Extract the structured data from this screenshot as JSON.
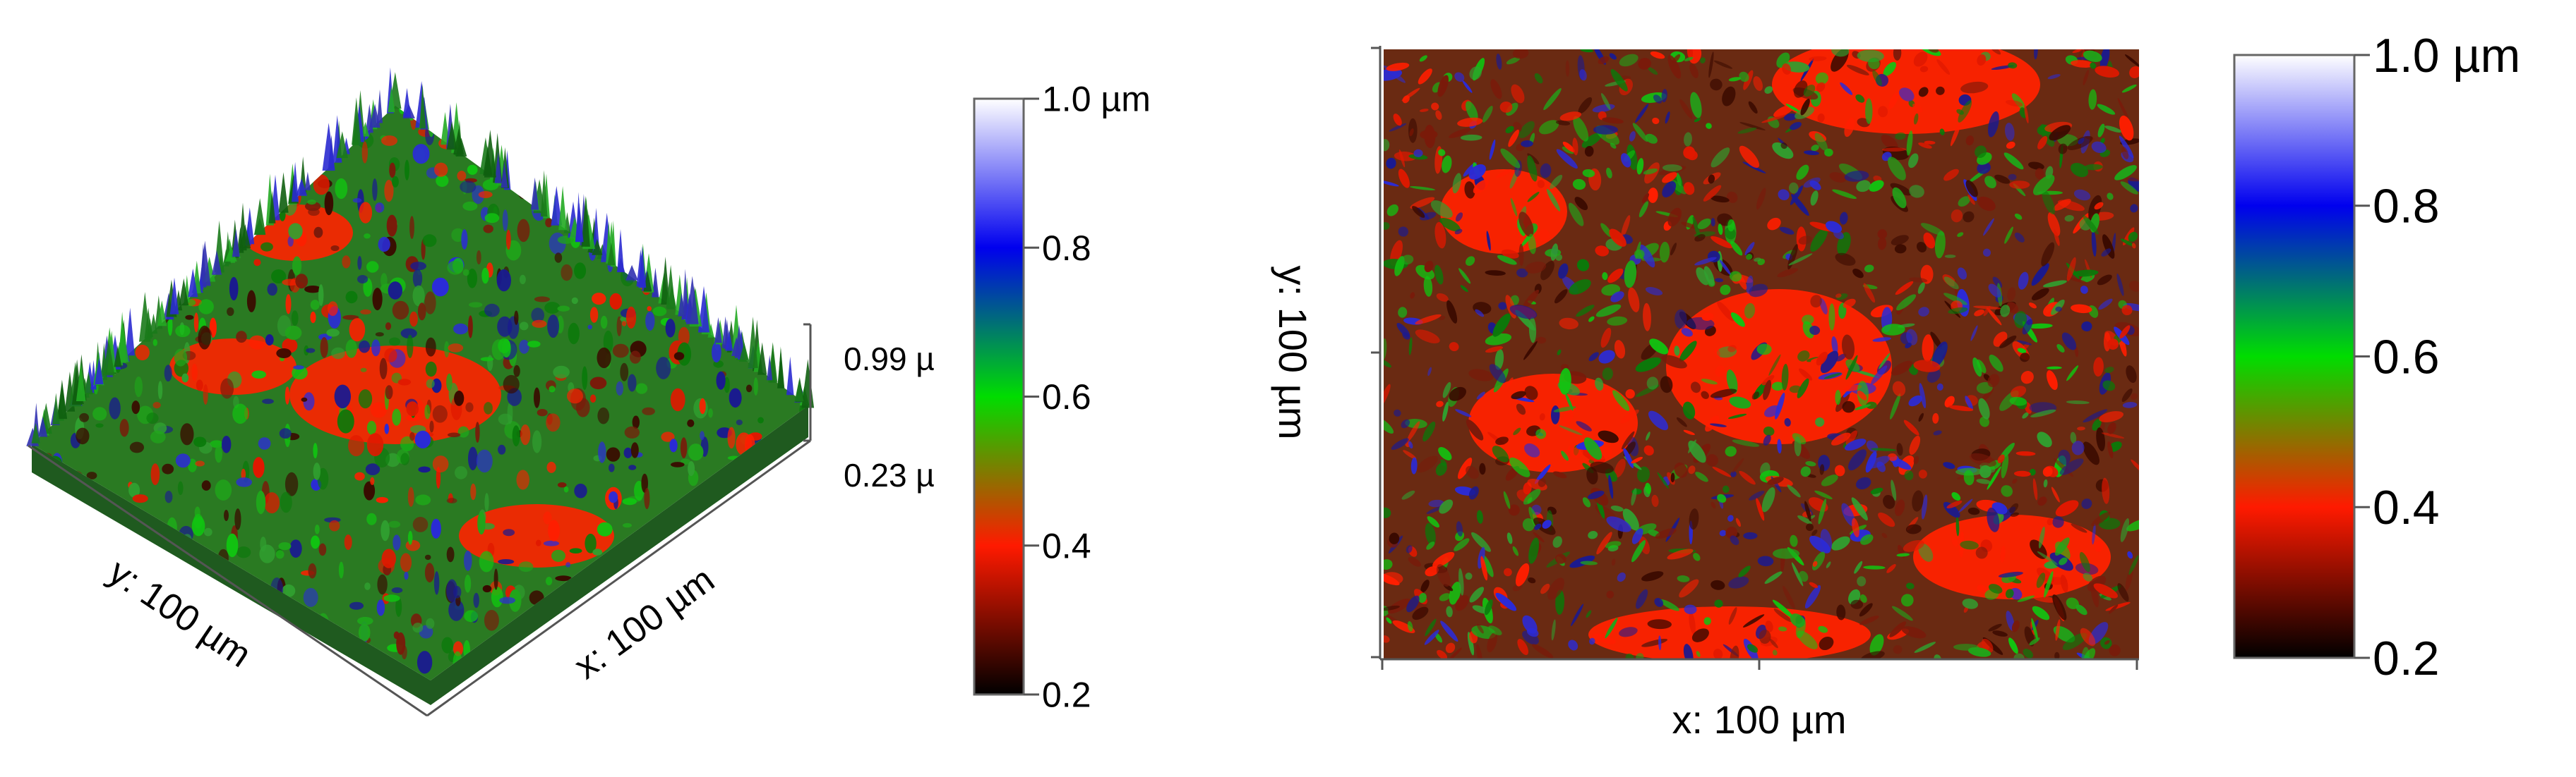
{
  "chart_data": [
    {
      "type": "heatmap",
      "view": "3d-surface",
      "x_axis_label": "x: 100 µm",
      "y_axis_label": "y: 100 µm",
      "z_range_labels": [
        "0.99 µ",
        "0.23 µ"
      ],
      "colorbar": {
        "ticks": [
          {
            "value": 1.0,
            "label": "1.0 µm"
          },
          {
            "value": 0.8,
            "label": "0.8"
          },
          {
            "value": 0.6,
            "label": "0.6"
          },
          {
            "value": 0.4,
            "label": "0.4"
          },
          {
            "value": 0.2,
            "label": "0.2"
          }
        ],
        "range": [
          0.2,
          1.0
        ]
      },
      "z_range": [
        0.23,
        0.99
      ]
    },
    {
      "type": "heatmap",
      "view": "2d-map",
      "x_axis_label": "x: 100 µm",
      "y_axis_label": "y: 100 µm",
      "colorbar": {
        "ticks": [
          {
            "value": 1.0,
            "label": "1.0 µm"
          },
          {
            "value": 0.8,
            "label": "0.8"
          },
          {
            "value": 0.6,
            "label": "0.6"
          },
          {
            "value": 0.4,
            "label": "0.4"
          },
          {
            "value": 0.2,
            "label": "0.2"
          }
        ],
        "range": [
          0.2,
          1.0
        ]
      }
    }
  ],
  "colormap": [
    {
      "stop": 0.0,
      "color": "#000000"
    },
    {
      "stop": 0.25,
      "color": "#ff1a00"
    },
    {
      "stop": 0.5,
      "color": "#00dd00"
    },
    {
      "stop": 0.75,
      "color": "#0000ee"
    },
    {
      "stop": 1.0,
      "color": "#ffffff"
    }
  ]
}
